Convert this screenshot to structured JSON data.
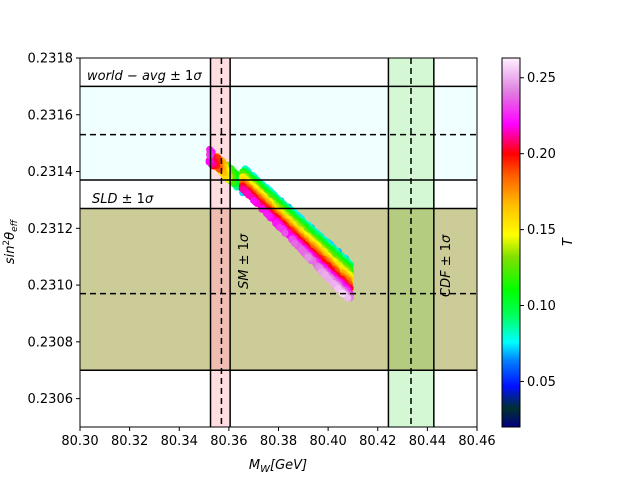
{
  "chart_data": {
    "type": "scatter",
    "title": "",
    "xlabel": "M_W[GeV]",
    "ylabel": "sin²θ_eff",
    "xlim": [
      80.3,
      80.46
    ],
    "ylim": [
      0.2305,
      0.2318
    ],
    "xticks": [
      "80.30",
      "80.32",
      "80.34",
      "80.36",
      "80.38",
      "80.40",
      "80.42",
      "80.44",
      "80.46"
    ],
    "yticks": [
      "0.2306",
      "0.2308",
      "0.2310",
      "0.2312",
      "0.2314",
      "0.2316",
      "0.2318"
    ],
    "colorbar": {
      "label": "T",
      "min": 0.02,
      "max": 0.263,
      "ticks": [
        "0.05",
        "0.10",
        "0.15",
        "0.20",
        "0.25"
      ],
      "tick_values": [
        0.05,
        0.1,
        0.15,
        0.2,
        0.25
      ],
      "colormap": "gist_ncar-like",
      "stops": [
        {
          "t": 0.0,
          "color": "#000080"
        },
        {
          "t": 0.05,
          "color": "#003030"
        },
        {
          "t": 0.11,
          "color": "#0010ff"
        },
        {
          "t": 0.18,
          "color": "#0080ff"
        },
        {
          "t": 0.23,
          "color": "#00ffff"
        },
        {
          "t": 0.3,
          "color": "#00ff60"
        },
        {
          "t": 0.37,
          "color": "#00ff00"
        },
        {
          "t": 0.46,
          "color": "#80e000"
        },
        {
          "t": 0.52,
          "color": "#ffff00"
        },
        {
          "t": 0.6,
          "color": "#ffc000"
        },
        {
          "t": 0.68,
          "color": "#ff6000"
        },
        {
          "t": 0.74,
          "color": "#ff0000"
        },
        {
          "t": 0.82,
          "color": "#ff00ff"
        },
        {
          "t": 0.91,
          "color": "#e080e0"
        },
        {
          "t": 1.0,
          "color": "#fff0ff"
        }
      ]
    },
    "bands": [
      {
        "name": "world-avg",
        "axis": "y",
        "range": [
          0.23137,
          0.2317
        ],
        "center": 0.23153,
        "fill": "#f0ffff"
      },
      {
        "name": "SLD",
        "axis": "y",
        "range": [
          0.2307,
          0.23127
        ],
        "center": 0.23097,
        "fill": "#cccc99"
      },
      {
        "name": "SM",
        "axis": "x",
        "range": [
          80.3526,
          80.3605
        ],
        "center": 80.357,
        "fill": "#ffdde0"
      },
      {
        "name": "CDF",
        "axis": "x",
        "range": [
          80.4243,
          80.4426
        ],
        "center": 80.4334,
        "fill": "#d4f8d4"
      },
      {
        "name": "SM-SLD-overlap",
        "axis": "xy",
        "fill": "#f0bdb3"
      },
      {
        "name": "CDF-SLD-overlap",
        "axis": "xy",
        "fill": "#b3cc80"
      }
    ],
    "annotations": [
      {
        "id": "world",
        "text": "world − avg ± 1σ"
      },
      {
        "id": "sld",
        "text": "SLD ± 1σ"
      },
      {
        "id": "sm",
        "text": "SM ± 1σ"
      },
      {
        "id": "cdf",
        "text": "CDF ± 1σ"
      }
    ],
    "scatter_series": [
      {
        "band": "upper-left",
        "x": [
          80.352,
          80.3654
        ],
        "y_top": [
          0.231485,
          0.23142
        ],
        "y_bot": [
          0.231475,
          0.23134
        ],
        "t": [
          0.22,
          0.05
        ]
      },
      {
        "band": "core",
        "x": [
          80.3654,
          80.409
        ],
        "y_top": [
          0.23142,
          0.23108
        ],
        "y_bot": [
          0.23134,
          0.23094
        ],
        "t_range": [
          0.05,
          0.25
        ]
      }
    ]
  }
}
